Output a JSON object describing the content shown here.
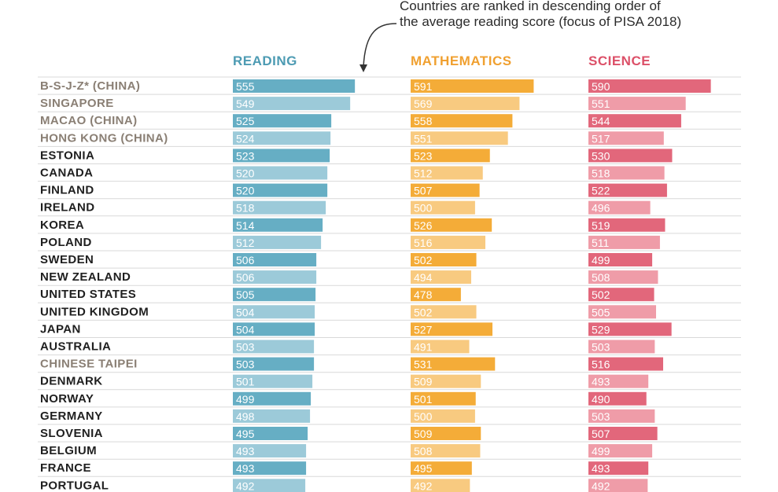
{
  "annotation": {
    "line1": "Countries are ranked in descending order of",
    "line2": "the average reading score (focus of PISA 2018)"
  },
  "colors": {
    "reading_dark": "#66aec4",
    "reading_light": "#9ccad9",
    "math_dark": "#f4ac38",
    "math_light": "#f8ca80",
    "science_dark": "#e2677b",
    "science_light": "#ef9ca8",
    "partial_label": "#8a7f74",
    "label": "#1f1f1f",
    "rule": "#d9d9d9"
  },
  "chart_data": {
    "type": "bar",
    "orientation": "horizontal",
    "categories": [
      "B-S-J-Z* (CHINA)",
      "SINGAPORE",
      "MACAO (CHINA)",
      "HONG KONG (CHINA)",
      "ESTONIA",
      "CANADA",
      "FINLAND",
      "IRELAND",
      "KOREA",
      "POLAND",
      "SWEDEN",
      "NEW ZEALAND",
      "UNITED STATES",
      "UNITED KINGDOM",
      "JAPAN",
      "AUSTRALIA",
      "CHINESE TAIPEI",
      "DENMARK",
      "NORWAY",
      "GERMANY",
      "SLOVENIA",
      "BELGIUM",
      "FRANCE",
      "PORTUGAL"
    ],
    "partial_participants": [
      "B-S-J-Z* (CHINA)",
      "SINGAPORE",
      "MACAO (CHINA)",
      "HONG KONG (CHINA)",
      "CHINESE TAIPEI"
    ],
    "series": [
      {
        "name": "READING",
        "color": "#66aec4",
        "values": [
          555,
          549,
          525,
          524,
          523,
          520,
          520,
          518,
          514,
          512,
          506,
          506,
          505,
          504,
          504,
          503,
          503,
          501,
          499,
          498,
          495,
          493,
          493,
          492
        ]
      },
      {
        "name": "MATHEMATICS",
        "color": "#f4ac38",
        "values": [
          591,
          569,
          558,
          551,
          523,
          512,
          507,
          500,
          526,
          516,
          502,
          494,
          478,
          502,
          527,
          491,
          531,
          509,
          501,
          500,
          509,
          508,
          495,
          492
        ]
      },
      {
        "name": "SCIENCE",
        "color": "#e2677b",
        "values": [
          590,
          551,
          544,
          517,
          530,
          518,
          522,
          496,
          519,
          511,
          499,
          508,
          502,
          505,
          529,
          503,
          516,
          493,
          490,
          503,
          507,
          499,
          493,
          492
        ]
      }
    ]
  }
}
